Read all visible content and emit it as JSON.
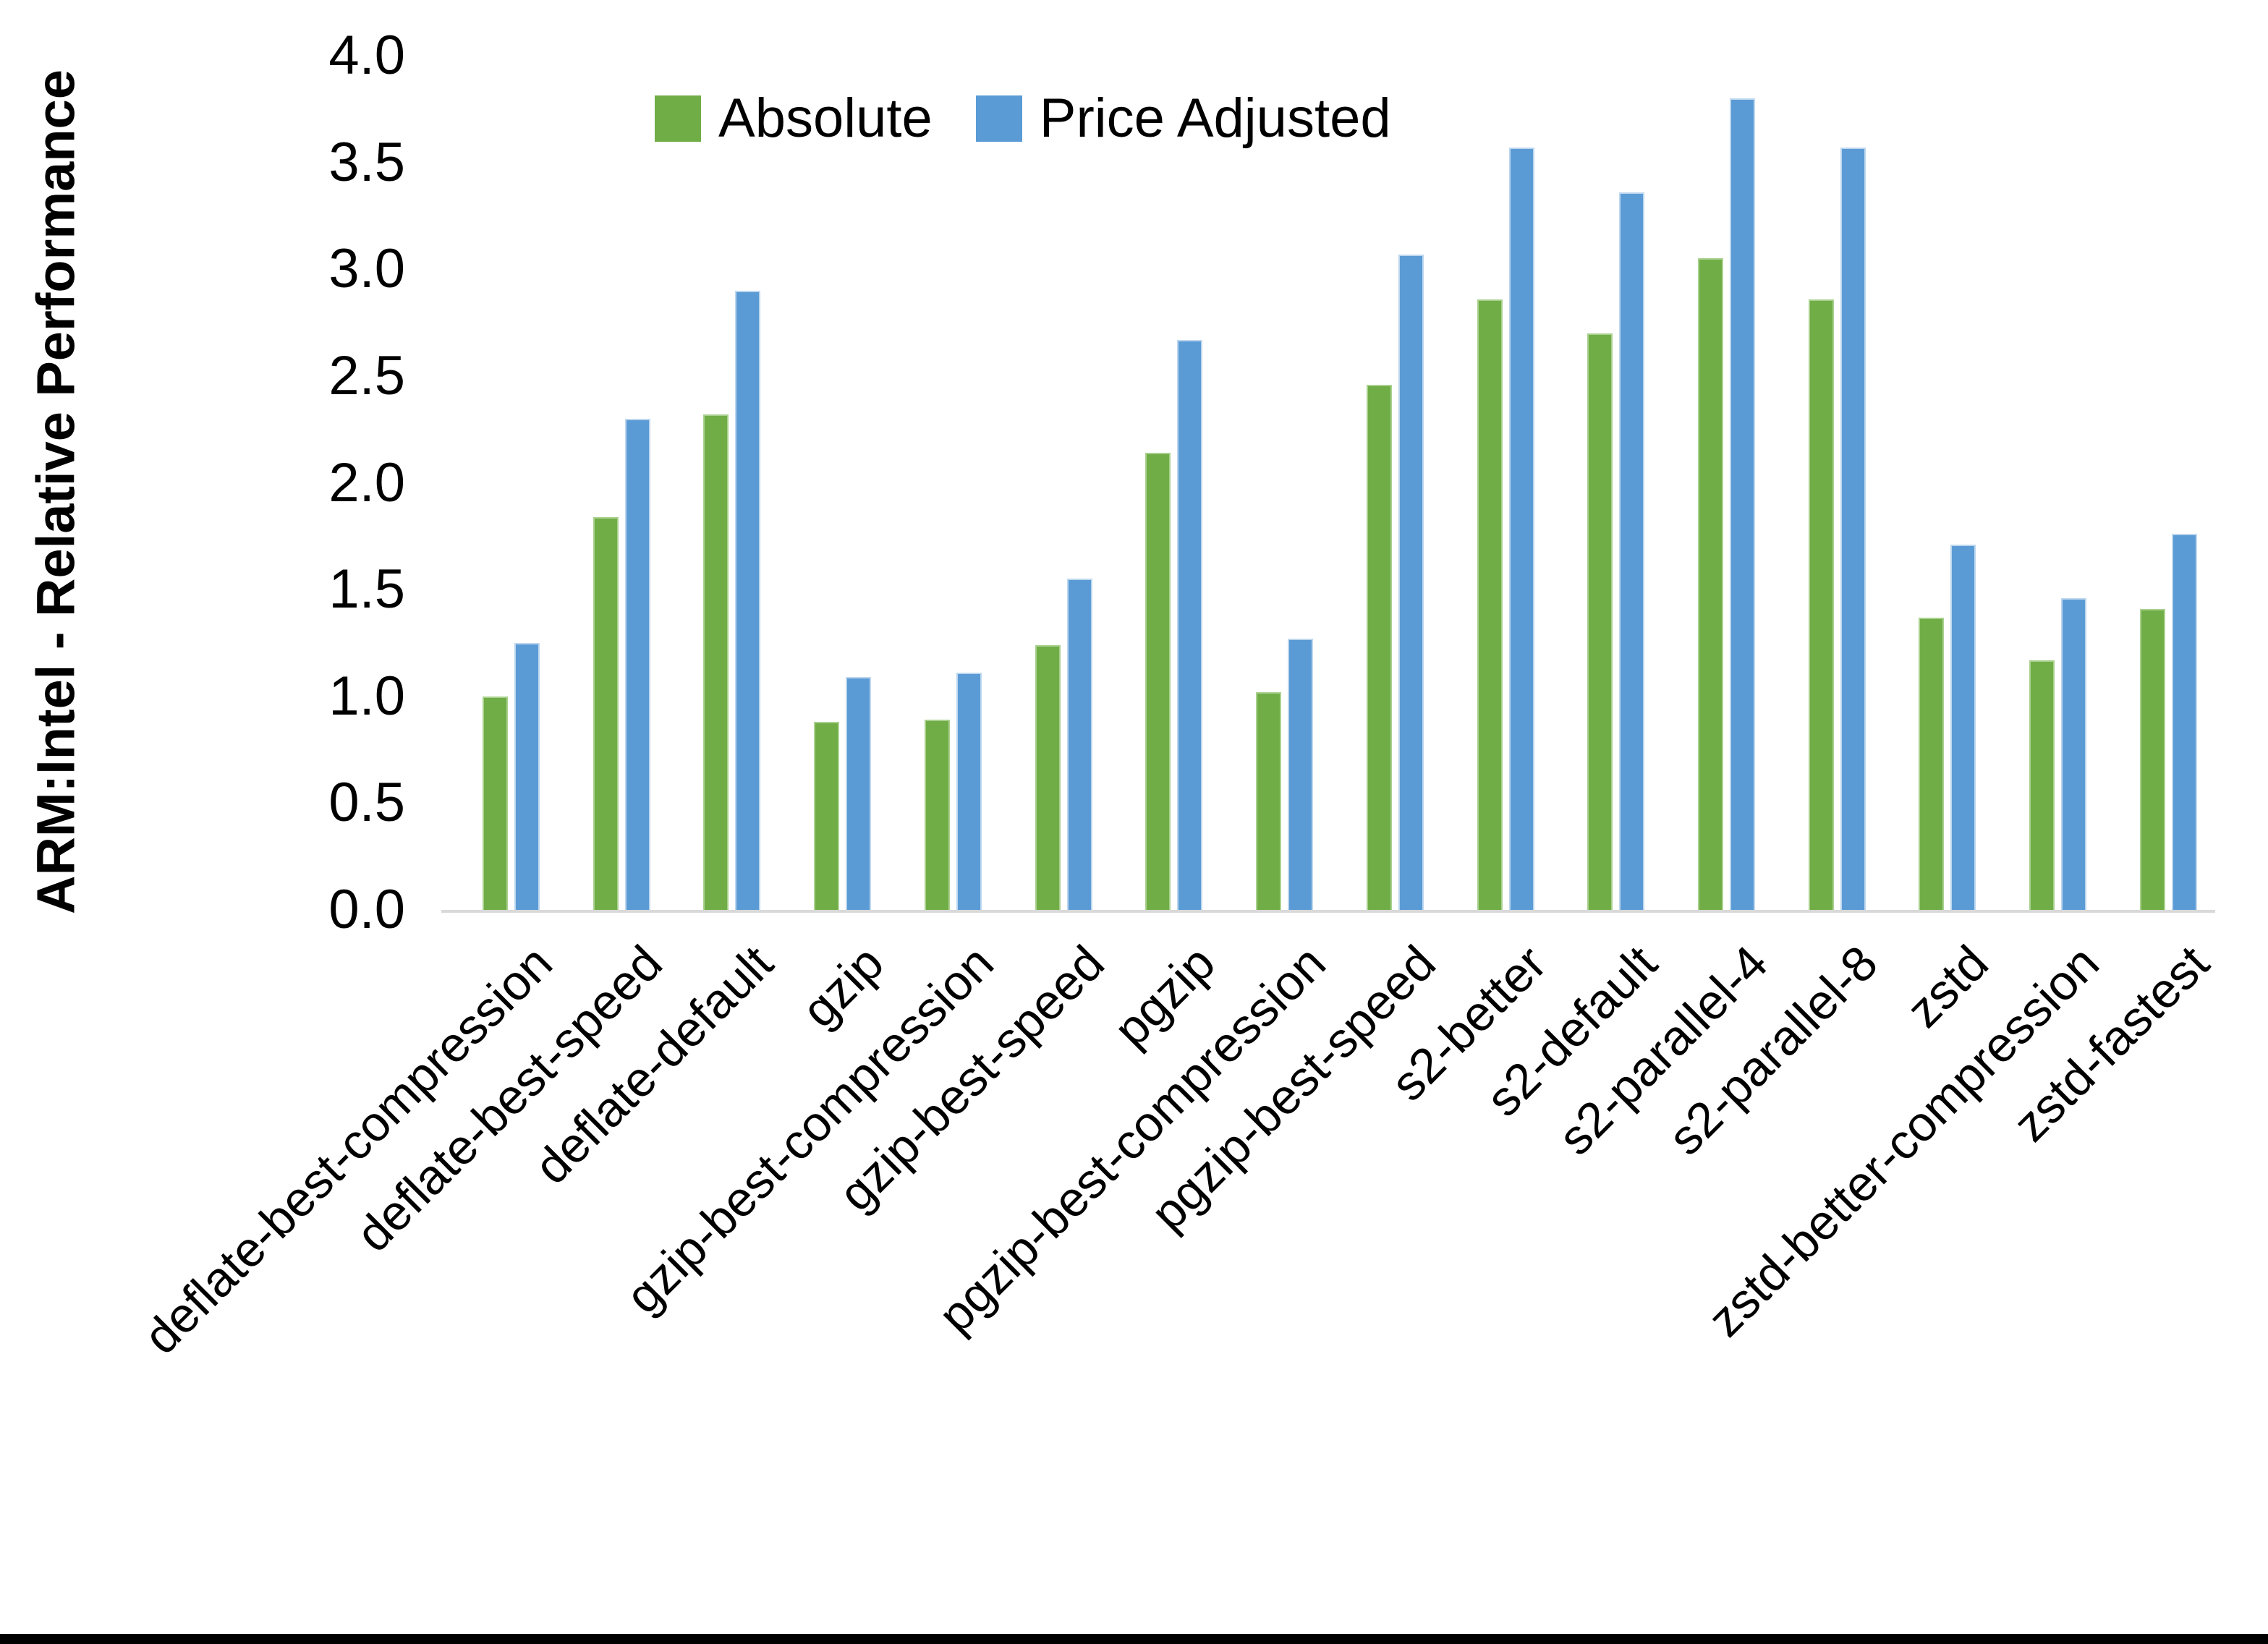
{
  "page": {
    "background": "#ffffff",
    "bottom_border_color": "#000000"
  },
  "chart_data": {
    "type": "bar",
    "title": "",
    "xlabel": "",
    "ylabel": "ARM:Intel - Relative Performance",
    "ylim": [
      0.0,
      4.0
    ],
    "ytick_step": 0.5,
    "ytick_labels": [
      "0.0",
      "0.5",
      "1.0",
      "1.5",
      "2.0",
      "2.5",
      "3.0",
      "3.5",
      "4.0"
    ],
    "grid": "off",
    "legend_position": "top-center",
    "axis_line_color": "#D9D9D9",
    "text_color": "#000000",
    "categories": [
      "deflate-best-compression",
      "deflate-best-speed",
      "deflate-default",
      "gzip",
      "gzip-best-compression",
      "gzip-best-speed",
      "pgzip",
      "pgzip-best-compression",
      "pgzip-best-speed",
      "s2-better",
      "s2-default",
      "s2-parallel-4",
      "s2-parallel-8",
      "zstd",
      "zstd-better-compression",
      "zstd-fastest"
    ],
    "series": [
      {
        "name": "Absolute",
        "color": "#70AD47",
        "border_color": "#A9D18E",
        "values": [
          1.0,
          1.84,
          2.32,
          0.88,
          0.89,
          1.24,
          2.14,
          1.02,
          2.46,
          2.86,
          2.7,
          3.05,
          2.86,
          1.37,
          1.17,
          1.41
        ]
      },
      {
        "name": "Price Adjusted",
        "color": "#5B9BD5",
        "border_color": "#BDD7EE",
        "values": [
          1.25,
          2.3,
          2.9,
          1.09,
          1.11,
          1.55,
          2.67,
          1.27,
          3.07,
          3.57,
          3.36,
          3.8,
          3.57,
          1.71,
          1.46,
          1.76
        ]
      }
    ]
  }
}
